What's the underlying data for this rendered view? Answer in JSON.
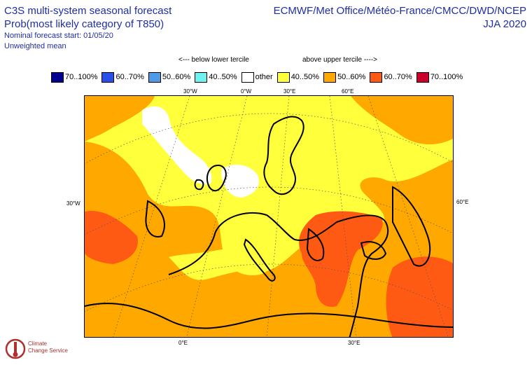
{
  "header": {
    "title_line1": "C3S multi-system seasonal forecast",
    "title_line2": "Prob(most likely category of T850)",
    "nominal_start": "Nominal forecast start: 01/05/20",
    "weighting": "Unweighted mean",
    "centres": "ECMWF/Met Office/Météo-France/CMCC/DWD/NCEP",
    "season": "JJA 2020"
  },
  "tercile_labels": {
    "below": "<--- below lower tercile",
    "above": "above upper tercile ---->"
  },
  "legend": [
    {
      "label": "70..100%",
      "color": "#00008c"
    },
    {
      "label": "60..70%",
      "color": "#2a4fe6"
    },
    {
      "label": "50..60%",
      "color": "#4f9ae6"
    },
    {
      "label": "40..50%",
      "color": "#6ef2ef"
    },
    {
      "label": "other",
      "color": "#ffffff"
    },
    {
      "label": "40..50%",
      "color": "#ffff3c"
    },
    {
      "label": "50..60%",
      "color": "#ffa800"
    },
    {
      "label": "60..70%",
      "color": "#ff5a14"
    },
    {
      "label": "70..100%",
      "color": "#c8002a"
    }
  ],
  "map": {
    "top_labels": [
      "30°W",
      "0°W",
      "30°E",
      "60°E"
    ],
    "left_label": "30°W",
    "right_label": "60°E",
    "bottom_labels": [
      "0°E",
      "30°E"
    ]
  },
  "logo": {
    "line1": "Climate",
    "line2": "Change Service"
  }
}
